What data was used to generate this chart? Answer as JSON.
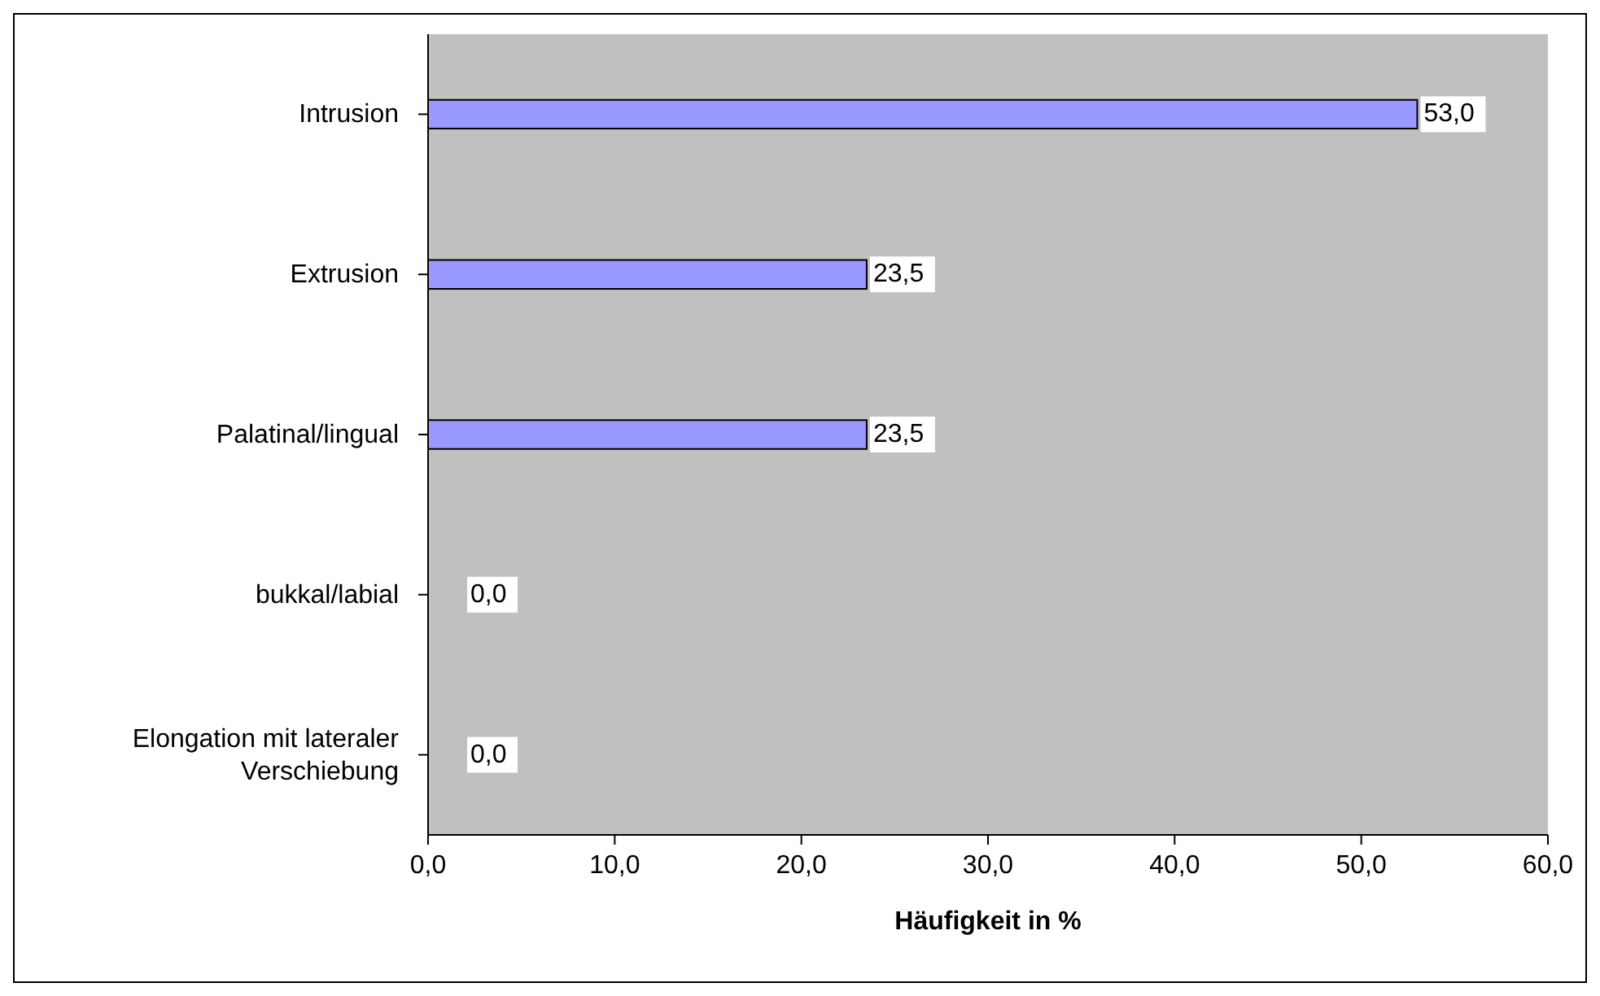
{
  "chart_data": {
    "type": "bar",
    "orientation": "horizontal",
    "xlabel": "Häufigkeit in %",
    "categories": [
      "Intrusion",
      "Extrusion",
      "Palatinal/lingual",
      "bukkal/labial",
      "Elongation mit lateraler Verschiebung"
    ],
    "values": [
      53.0,
      23.5,
      23.5,
      0.0,
      0.0
    ],
    "value_labels": [
      "53,0",
      "23,5",
      "23,5",
      "0,0",
      "0,0"
    ],
    "color": "#9999ff",
    "xlim": [
      0,
      60
    ],
    "xticks": [
      {
        "value": 0,
        "label": "0,0"
      },
      {
        "value": 10,
        "label": "10,0"
      },
      {
        "value": 20,
        "label": "20,0"
      },
      {
        "value": 30,
        "label": "30,0"
      },
      {
        "value": 40,
        "label": "40,0"
      },
      {
        "value": 50,
        "label": "50,0"
      },
      {
        "value": 60,
        "label": "60,0"
      }
    ]
  }
}
